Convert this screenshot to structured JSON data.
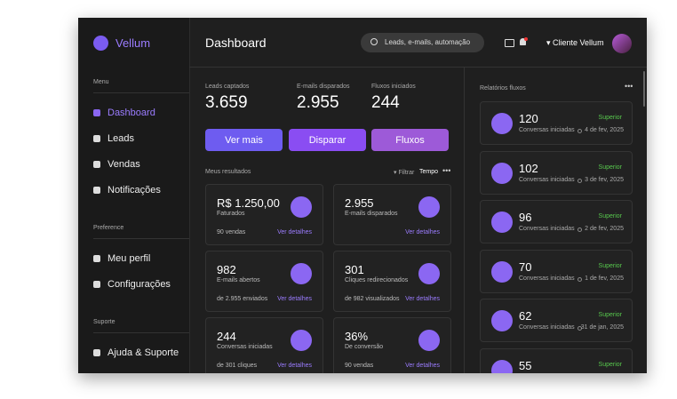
{
  "brand": "Vellum",
  "sidebar": [
    {
      "heading": "Menu",
      "items": [
        "Dashboard",
        "Leads",
        "Vendas",
        "Notificações"
      ]
    },
    {
      "heading": "Preference",
      "items": [
        "Meu perfil",
        "Configurações"
      ]
    },
    {
      "heading": "Suporte",
      "items": [
        "Ajuda & Suporte"
      ]
    }
  ],
  "header": {
    "title": "Dashboard",
    "search": "Leads, e-mails, automação",
    "user": "Cliente Vellum"
  },
  "stats": [
    {
      "label": "Leads captados",
      "value": "3.659"
    },
    {
      "label": "E-mails disparados",
      "value": "2.955"
    },
    {
      "label": "Fluxos iniciados",
      "value": "244"
    }
  ],
  "buttons": [
    "Ver mais",
    "Disparar",
    "Fluxos"
  ],
  "results": {
    "title": "Meus resultados",
    "filter": "Filtrar",
    "period": "Tempo",
    "cards": [
      {
        "value": "R$ 1.250,00",
        "label": "Faturados",
        "footer": "90 vendas",
        "link": "Ver detalhes"
      },
      {
        "value": "2.955",
        "label": "E-mails disparados",
        "footer": "",
        "link": "Ver detalhes"
      },
      {
        "value": "982",
        "label": "E-mails abertos",
        "footer": "de 2.955 enviados",
        "link": "Ver detalhes"
      },
      {
        "value": "301",
        "label": "Cliques redirecionados",
        "footer": "de 982 visualizados",
        "link": "Ver detalhes"
      },
      {
        "value": "244",
        "label": "Conversas iniciadas",
        "footer": "de 301 cliques",
        "link": "Ver detalhes"
      },
      {
        "value": "36%",
        "label": "De conversão",
        "footer": "90 vendas",
        "link": "Ver detalhes"
      }
    ]
  },
  "reports": {
    "title": "Relatórios fluxos",
    "items": [
      {
        "value": "120",
        "badge": "Superior",
        "label": "Conversas iniciadas",
        "date": "4 de fev, 2025"
      },
      {
        "value": "102",
        "badge": "Superior",
        "label": "Conversas iniciadas",
        "date": "3 de fev, 2025"
      },
      {
        "value": "96",
        "badge": "Superior",
        "label": "Conversas iniciadas",
        "date": "2 de fev, 2025"
      },
      {
        "value": "70",
        "badge": "Superior",
        "label": "Conversas iniciadas",
        "date": "1 de fev, 2025"
      },
      {
        "value": "62",
        "badge": "Superior",
        "label": "Conversas iniciadas",
        "date": "31 de jan, 2025"
      },
      {
        "value": "55",
        "badge": "Superior"
      }
    ]
  }
}
